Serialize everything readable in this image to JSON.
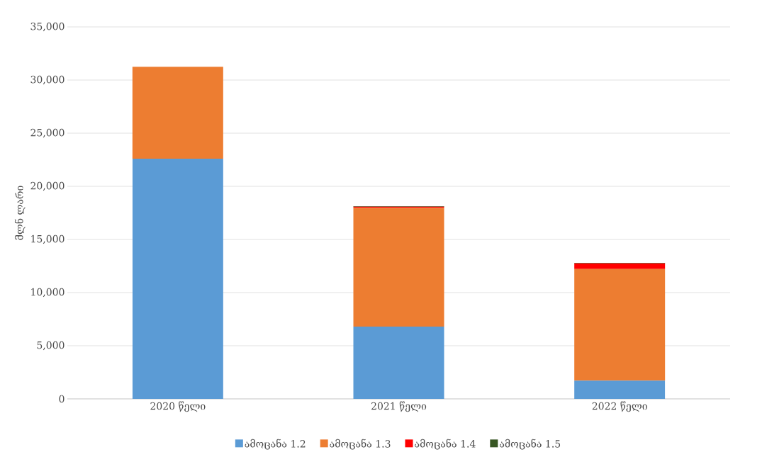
{
  "chart_data": {
    "type": "bar",
    "stacked": true,
    "ylabel": "მლნ ლარი",
    "categories": [
      "2020 წელი",
      "2021 წელი",
      "2022 წელი"
    ],
    "series": [
      {
        "name": "ამოცანა 1.2",
        "color": "#5b9bd5",
        "values": [
          22600,
          6800,
          1720
        ]
      },
      {
        "name": "ამოცანა 1.3",
        "color": "#ed7d31",
        "values": [
          8650,
          11180,
          10490
        ]
      },
      {
        "name": "ამოცანა 1.4",
        "color": "#ff0000",
        "values": [
          0,
          100,
          540
        ]
      },
      {
        "name": "ამოცანა 1.5",
        "color": "#375623",
        "values": [
          0,
          50,
          50
        ]
      }
    ],
    "ylim": [
      0,
      35000
    ],
    "yticks": [
      {
        "value": 0,
        "label": "0"
      },
      {
        "value": 5000,
        "label": "5,000"
      },
      {
        "value": 10000,
        "label": "10,000"
      },
      {
        "value": 15000,
        "label": "15,000"
      },
      {
        "value": 20000,
        "label": "20,000"
      },
      {
        "value": 25000,
        "label": "25,000"
      },
      {
        "value": 30000,
        "label": "30,000"
      },
      {
        "value": 35000,
        "label": "35,000"
      }
    ],
    "grid": "y",
    "legend": "bottom"
  }
}
